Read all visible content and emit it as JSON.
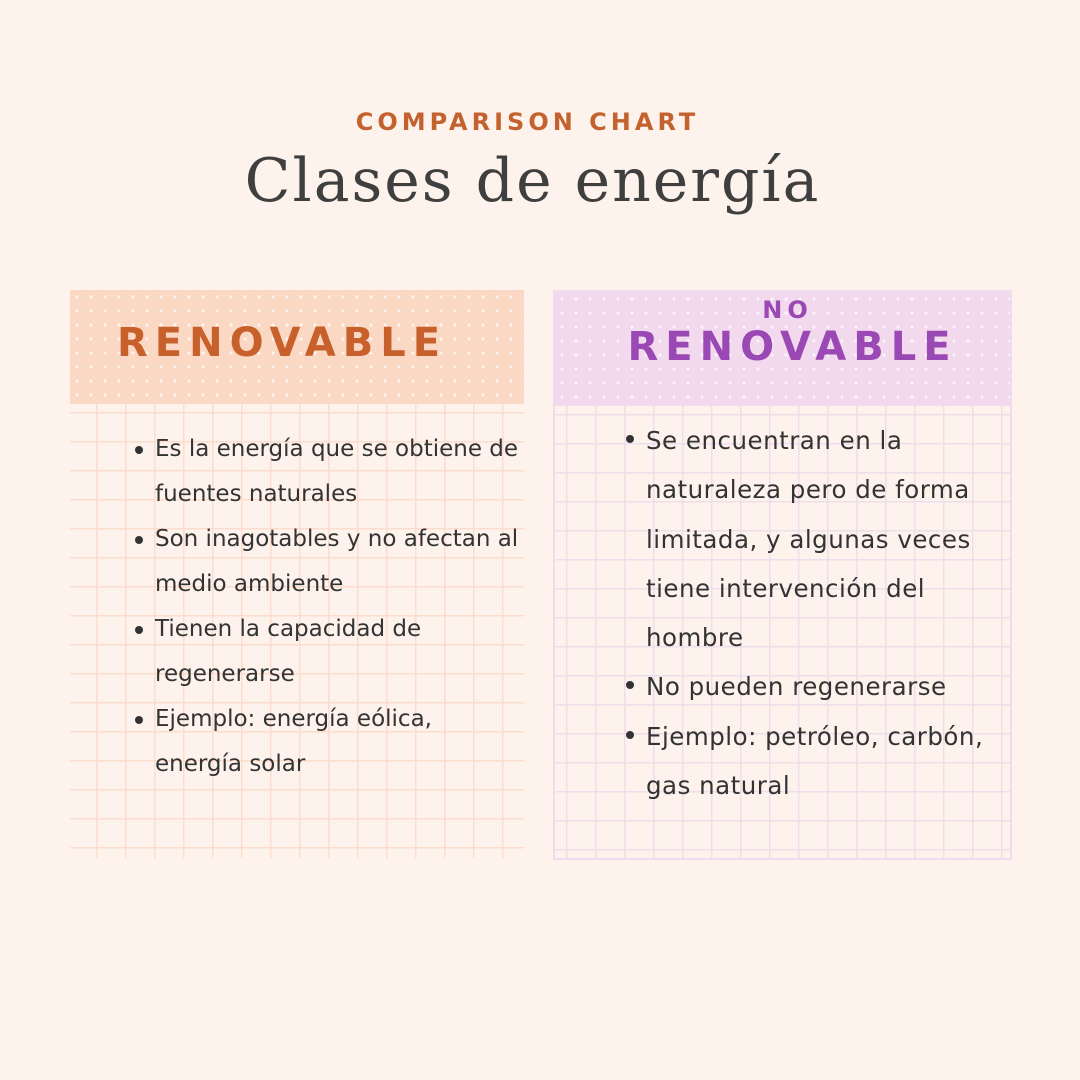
{
  "header": {
    "eyebrow": "COMPARISON CHART",
    "title": "Clases de energía"
  },
  "columns": [
    {
      "heading": "RENOVABLE",
      "accent_color": "#c8602c",
      "header_bg": "#fbd8c4",
      "points": [
        "Es la energía que se obtiene de fuentes naturales",
        "Son inagotables y no afectan al medio ambiente",
        "Tienen la capacidad de regenerarse",
        "Ejemplo: energía eólica, energía solar"
      ]
    },
    {
      "heading_prefix": "NO",
      "heading": "RENOVABLE",
      "accent_color": "#9a48b3",
      "header_bg": "#f2d9ed",
      "points": [
        "Se encuentran en la naturaleza pero de forma limitada, y algunas veces tiene intervención del hombre",
        "No pueden regenerarse",
        "Ejemplo: petróleo, carbón, gas natural"
      ]
    }
  ]
}
